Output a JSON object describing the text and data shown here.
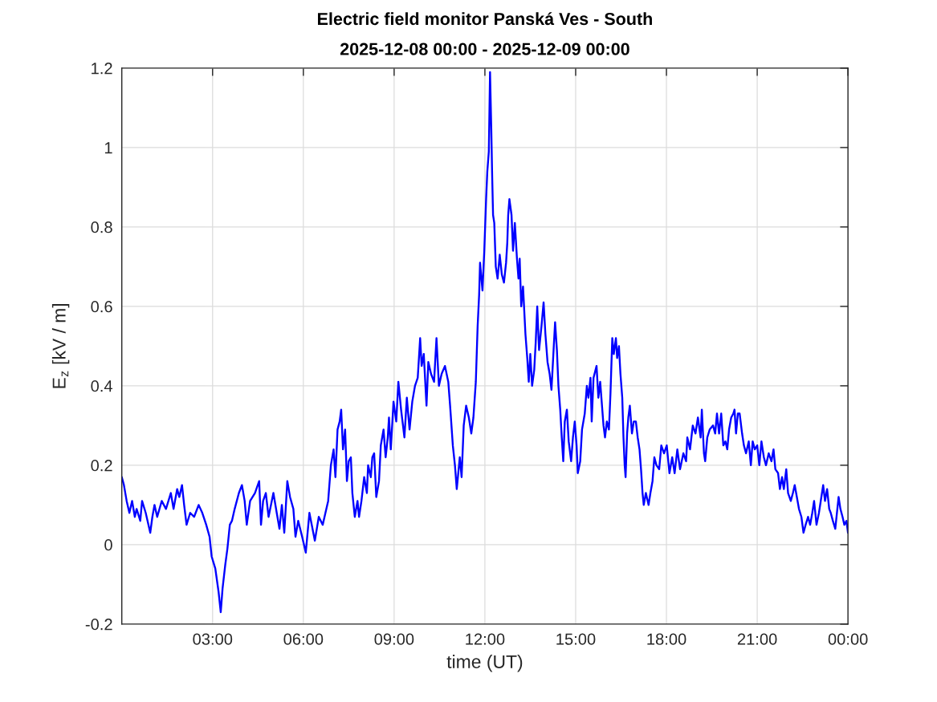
{
  "chart_data": {
    "type": "line",
    "title": "Electric field monitor Panská Ves - South",
    "subtitle": "2025-12-08 00:00 - 2025-12-09 00:00",
    "xlabel": "time (UT)",
    "ylabel": "E$_{z}$ [kV / m]",
    "xlim": [
      0,
      24
    ],
    "xticks": [
      {
        "value": 3,
        "label": "03:00"
      },
      {
        "value": 6,
        "label": "06:00"
      },
      {
        "value": 9,
        "label": "09:00"
      },
      {
        "value": 12,
        "label": "12:00"
      },
      {
        "value": 15,
        "label": "15:00"
      },
      {
        "value": 18,
        "label": "18:00"
      },
      {
        "value": 21,
        "label": "21:00"
      },
      {
        "value": 24,
        "label": "00:00"
      }
    ],
    "ylim": [
      -0.2,
      1.2
    ],
    "yticks": [
      -0.2,
      0,
      0.2,
      0.4,
      0.6,
      0.8,
      1,
      1.2
    ],
    "grid": true,
    "line_style": "solid",
    "color": "#0000ff",
    "x": [
      0,
      0.07,
      0.16,
      0.25,
      0.34,
      0.43,
      0.49,
      0.61,
      0.67,
      0.79,
      0.94,
      1.01,
      1.08,
      1.17,
      1.32,
      1.46,
      1.62,
      1.71,
      1.83,
      1.9,
      1.99,
      2.06,
      2.14,
      2.26,
      2.39,
      2.54,
      2.66,
      2.79,
      2.9,
      2.97,
      3.09,
      3.2,
      3.27,
      3.33,
      3.42,
      3.49,
      3.57,
      3.64,
      3.73,
      3.87,
      3.97,
      4.06,
      4.13,
      4.24,
      4.4,
      4.54,
      4.6,
      4.67,
      4.76,
      4.85,
      5.01,
      5.12,
      5.21,
      5.29,
      5.37,
      5.47,
      5.56,
      5.67,
      5.74,
      5.83,
      5.96,
      6.08,
      6.2,
      6.38,
      6.51,
      6.64,
      6.73,
      6.82,
      6.91,
      7.0,
      7.06,
      7.13,
      7.2,
      7.25,
      7.31,
      7.38,
      7.44,
      7.5,
      7.57,
      7.62,
      7.7,
      7.79,
      7.84,
      7.92,
      8.01,
      8.1,
      8.14,
      8.23,
      8.28,
      8.34,
      8.41,
      8.5,
      8.56,
      8.65,
      8.72,
      8.79,
      8.83,
      8.89,
      8.98,
      9.07,
      9.14,
      9.23,
      9.34,
      9.42,
      9.51,
      9.6,
      9.69,
      9.78,
      9.86,
      9.91,
      9.98,
      10.07,
      10.13,
      10.22,
      10.32,
      10.4,
      10.48,
      10.57,
      10.68,
      10.79,
      10.85,
      10.94,
      11.01,
      11.07,
      11.17,
      11.23,
      11.3,
      11.38,
      11.47,
      11.55,
      11.62,
      11.7,
      11.76,
      11.81,
      11.84,
      11.92,
      11.98,
      12.04,
      12.08,
      12.13,
      12.17,
      12.21,
      12.24,
      12.27,
      12.31,
      12.36,
      12.42,
      12.49,
      12.56,
      12.63,
      12.7,
      12.74,
      12.77,
      12.81,
      12.88,
      12.93,
      12.99,
      13.06,
      13.11,
      13.15,
      13.2,
      13.26,
      13.34,
      13.4,
      13.45,
      13.5,
      13.56,
      13.63,
      13.68,
      13.73,
      13.79,
      13.87,
      13.94,
      14.0,
      14.07,
      14.14,
      14.2,
      14.27,
      14.32,
      14.38,
      14.43,
      14.49,
      14.54,
      14.59,
      14.64,
      14.71,
      14.77,
      14.85,
      14.91,
      14.97,
      15.03,
      15.07,
      15.15,
      15.21,
      15.3,
      15.37,
      15.42,
      15.49,
      15.53,
      15.59,
      15.69,
      15.75,
      15.81,
      15.88,
      15.92,
      15.97,
      16.03,
      16.1,
      16.15,
      16.21,
      16.26,
      16.33,
      16.37,
      16.43,
      16.48,
      16.54,
      16.58,
      16.62,
      16.65,
      16.7,
      16.74,
      16.79,
      16.86,
      16.92,
      16.99,
      17.05,
      17.11,
      17.16,
      17.21,
      17.25,
      17.32,
      17.41,
      17.47,
      17.54,
      17.6,
      17.67,
      17.76,
      17.83,
      17.92,
      18.01,
      18.1,
      18.19,
      18.27,
      18.36,
      18.45,
      18.56,
      18.65,
      18.69,
      18.78,
      18.87,
      18.96,
      19.04,
      19.13,
      19.17,
      19.24,
      19.28,
      19.35,
      19.43,
      19.54,
      19.61,
      19.67,
      19.74,
      19.81,
      19.88,
      19.95,
      20.01,
      20.07,
      20.14,
      20.21,
      20.25,
      20.3,
      20.36,
      20.42,
      20.5,
      20.56,
      20.63,
      20.72,
      20.79,
      20.85,
      20.92,
      21.0,
      21.07,
      21.14,
      21.22,
      21.29,
      21.38,
      21.47,
      21.54,
      21.6,
      21.69,
      21.75,
      21.82,
      21.88,
      21.96,
      22.02,
      22.11,
      22.18,
      22.24,
      22.31,
      22.38,
      22.46,
      22.53,
      22.6,
      22.68,
      22.75,
      22.82,
      22.88,
      22.96,
      23.04,
      23.12,
      23.18,
      23.24,
      23.31,
      23.38,
      23.43,
      23.5,
      23.58,
      23.69,
      23.75,
      23.82,
      23.88,
      23.95,
      24.0
    ],
    "values": [
      0.17,
      0.15,
      0.11,
      0.08,
      0.11,
      0.07,
      0.09,
      0.06,
      0.11,
      0.08,
      0.03,
      0.07,
      0.1,
      0.07,
      0.11,
      0.09,
      0.13,
      0.09,
      0.14,
      0.12,
      0.15,
      0.1,
      0.05,
      0.08,
      0.07,
      0.1,
      0.08,
      0.05,
      0.02,
      -0.03,
      -0.06,
      -0.12,
      -0.17,
      -0.11,
      -0.05,
      -0.01,
      0.05,
      0.06,
      0.09,
      0.13,
      0.15,
      0.11,
      0.05,
      0.11,
      0.13,
      0.16,
      0.05,
      0.11,
      0.13,
      0.07,
      0.13,
      0.08,
      0.04,
      0.1,
      0.03,
      0.16,
      0.12,
      0.09,
      0.02,
      0.06,
      0.02,
      -0.02,
      0.08,
      0.01,
      0.07,
      0.05,
      0.08,
      0.11,
      0.2,
      0.24,
      0.17,
      0.29,
      0.31,
      0.34,
      0.24,
      0.29,
      0.16,
      0.21,
      0.22,
      0.13,
      0.07,
      0.11,
      0.07,
      0.11,
      0.17,
      0.13,
      0.2,
      0.17,
      0.22,
      0.23,
      0.12,
      0.16,
      0.25,
      0.29,
      0.22,
      0.27,
      0.32,
      0.24,
      0.36,
      0.31,
      0.41,
      0.34,
      0.27,
      0.37,
      0.29,
      0.36,
      0.4,
      0.42,
      0.52,
      0.45,
      0.48,
      0.35,
      0.46,
      0.43,
      0.41,
      0.52,
      0.4,
      0.43,
      0.45,
      0.41,
      0.35,
      0.25,
      0.2,
      0.14,
      0.22,
      0.17,
      0.3,
      0.35,
      0.32,
      0.28,
      0.32,
      0.41,
      0.55,
      0.63,
      0.71,
      0.64,
      0.74,
      0.87,
      0.94,
      0.99,
      1.19,
      1.05,
      0.93,
      0.83,
      0.81,
      0.7,
      0.67,
      0.73,
      0.68,
      0.66,
      0.71,
      0.76,
      0.83,
      0.87,
      0.83,
      0.74,
      0.81,
      0.72,
      0.67,
      0.72,
      0.6,
      0.65,
      0.53,
      0.47,
      0.41,
      0.48,
      0.4,
      0.44,
      0.51,
      0.6,
      0.49,
      0.55,
      0.61,
      0.53,
      0.46,
      0.43,
      0.39,
      0.49,
      0.56,
      0.49,
      0.4,
      0.34,
      0.27,
      0.21,
      0.31,
      0.34,
      0.26,
      0.21,
      0.27,
      0.31,
      0.25,
      0.18,
      0.21,
      0.29,
      0.33,
      0.4,
      0.37,
      0.42,
      0.31,
      0.42,
      0.45,
      0.37,
      0.41,
      0.34,
      0.3,
      0.27,
      0.31,
      0.29,
      0.38,
      0.52,
      0.48,
      0.52,
      0.47,
      0.5,
      0.43,
      0.37,
      0.27,
      0.2,
      0.17,
      0.28,
      0.32,
      0.35,
      0.28,
      0.31,
      0.31,
      0.27,
      0.24,
      0.19,
      0.13,
      0.1,
      0.13,
      0.1,
      0.13,
      0.16,
      0.22,
      0.2,
      0.19,
      0.25,
      0.23,
      0.25,
      0.18,
      0.22,
      0.18,
      0.24,
      0.19,
      0.23,
      0.21,
      0.27,
      0.24,
      0.3,
      0.28,
      0.32,
      0.27,
      0.34,
      0.23,
      0.21,
      0.27,
      0.29,
      0.3,
      0.28,
      0.33,
      0.28,
      0.33,
      0.25,
      0.26,
      0.24,
      0.29,
      0.32,
      0.33,
      0.34,
      0.28,
      0.33,
      0.33,
      0.28,
      0.25,
      0.23,
      0.26,
      0.2,
      0.26,
      0.24,
      0.25,
      0.2,
      0.26,
      0.22,
      0.2,
      0.23,
      0.21,
      0.24,
      0.19,
      0.18,
      0.14,
      0.17,
      0.14,
      0.19,
      0.13,
      0.11,
      0.13,
      0.15,
      0.12,
      0.09,
      0.07,
      0.03,
      0.05,
      0.07,
      0.05,
      0.08,
      0.11,
      0.05,
      0.08,
      0.12,
      0.15,
      0.11,
      0.14,
      0.09,
      0.08,
      0.06,
      0.04,
      0.12,
      0.09,
      0.07,
      0.05,
      0.06,
      0.03
    ]
  }
}
